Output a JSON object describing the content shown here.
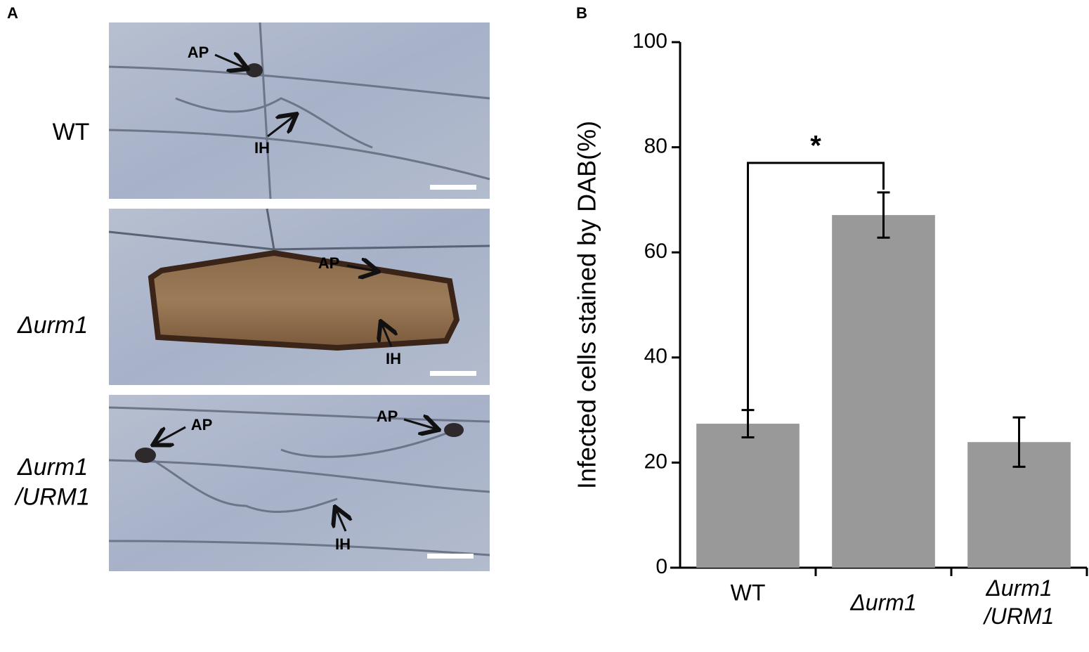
{
  "panel_a": {
    "label": "A",
    "rows": [
      {
        "label": "WT",
        "annotations": [
          "AP",
          "IH"
        ]
      },
      {
        "label": "Δurm1",
        "annotations": [
          "AP",
          "IH"
        ]
      },
      {
        "label": "Δurm1\n/URM1",
        "annotations": [
          "AP",
          "AP",
          "IH"
        ]
      }
    ]
  },
  "chart_data": {
    "type": "bar",
    "panel_label": "B",
    "ylabel": "Infected cells stained by DAB(%)",
    "categories": [
      "WT",
      "Δurm1",
      "Δurm1\n/URM1"
    ],
    "values": [
      27.4,
      67.1,
      23.9
    ],
    "errors": [
      2.6,
      4.3,
      4.7
    ],
    "color": "#999999",
    "ylim": [
      0,
      100
    ],
    "yticks": [
      0,
      20,
      40,
      60,
      80,
      100
    ],
    "annotation": "*"
  }
}
